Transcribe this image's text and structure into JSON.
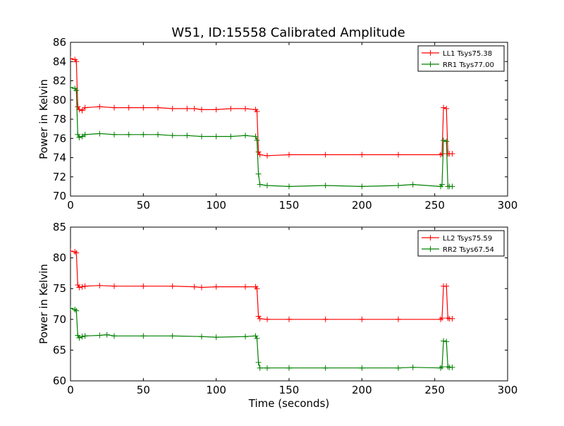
{
  "figure": {
    "title": "W51, ID:15558 Calibrated Amplitude"
  },
  "chart_data": [
    {
      "type": "line",
      "title": "W51, ID:15558 Calibrated Amplitude",
      "xlabel": "",
      "ylabel": "Power in Kelvin",
      "xlim": [
        0,
        300
      ],
      "ylim": [
        70,
        86
      ],
      "xticks": [
        0,
        50,
        100,
        150,
        200,
        250,
        300
      ],
      "yticks": [
        70,
        72,
        74,
        76,
        78,
        80,
        82,
        84,
        86
      ],
      "grid": false,
      "legend_position": "top-right",
      "series": [
        {
          "name": "LL1 Tsys75.38",
          "color": "#ff0000",
          "x": [
            0,
            3,
            4,
            5,
            6,
            8,
            10,
            20,
            30,
            40,
            50,
            60,
            70,
            80,
            85,
            90,
            100,
            110,
            120,
            127,
            128,
            129,
            130,
            135,
            150,
            175,
            200,
            225,
            254,
            255,
            256,
            258,
            259,
            260,
            262
          ],
          "values": [
            84.3,
            84.2,
            84.0,
            79.3,
            79.0,
            78.9,
            79.2,
            79.3,
            79.2,
            79.2,
            79.2,
            79.2,
            79.1,
            79.1,
            79.1,
            79.0,
            79.0,
            79.1,
            79.1,
            79.0,
            78.8,
            74.6,
            74.3,
            74.2,
            74.3,
            74.3,
            74.3,
            74.3,
            74.3,
            74.4,
            79.2,
            79.1,
            74.4,
            74.4,
            74.4
          ]
        },
        {
          "name": "RR1 Tsys77.00",
          "color": "#008000",
          "x": [
            0,
            3,
            4,
            5,
            6,
            8,
            10,
            20,
            30,
            40,
            50,
            60,
            70,
            80,
            90,
            100,
            110,
            120,
            127,
            128,
            129,
            130,
            135,
            150,
            175,
            200,
            225,
            235,
            254,
            255,
            256,
            258,
            259,
            260,
            262
          ],
          "values": [
            81.3,
            81.2,
            81.0,
            76.4,
            76.1,
            76.2,
            76.4,
            76.5,
            76.4,
            76.4,
            76.4,
            76.4,
            76.3,
            76.3,
            76.2,
            76.2,
            76.2,
            76.3,
            76.2,
            75.8,
            72.3,
            71.2,
            71.1,
            71.0,
            71.1,
            71.0,
            71.1,
            71.2,
            71.0,
            71.2,
            75.8,
            75.7,
            71.0,
            71.0,
            71.0
          ]
        }
      ]
    },
    {
      "type": "line",
      "title": "",
      "xlabel": "Time (seconds)",
      "ylabel": "Power in Kelvin",
      "xlim": [
        0,
        300
      ],
      "ylim": [
        60,
        85
      ],
      "xticks": [
        0,
        50,
        100,
        150,
        200,
        250,
        300
      ],
      "yticks": [
        60,
        65,
        70,
        75,
        80,
        85
      ],
      "grid": false,
      "legend_position": "top-right",
      "series": [
        {
          "name": "LL2 Tsys75.59",
          "color": "#ff0000",
          "x": [
            0,
            3,
            4,
            5,
            6,
            8,
            10,
            20,
            30,
            50,
            70,
            85,
            90,
            100,
            120,
            127,
            128,
            129,
            130,
            135,
            150,
            175,
            200,
            225,
            254,
            255,
            256,
            258,
            259,
            260,
            262
          ],
          "values": [
            81.1,
            81.0,
            80.8,
            75.6,
            75.2,
            75.3,
            75.4,
            75.5,
            75.4,
            75.4,
            75.4,
            75.3,
            75.2,
            75.3,
            75.3,
            75.3,
            75.0,
            70.5,
            70.1,
            70.0,
            70.0,
            70.0,
            70.0,
            70.0,
            70.0,
            70.2,
            75.4,
            75.4,
            70.2,
            70.1,
            70.1
          ]
        },
        {
          "name": "RR2 Tsys67.54",
          "color": "#008000",
          "x": [
            0,
            3,
            4,
            5,
            6,
            8,
            10,
            20,
            25,
            30,
            50,
            70,
            90,
            100,
            120,
            127,
            128,
            129,
            130,
            135,
            150,
            175,
            200,
            225,
            235,
            254,
            255,
            256,
            258,
            259,
            260,
            262
          ],
          "values": [
            71.8,
            71.6,
            71.4,
            67.4,
            67.0,
            67.2,
            67.3,
            67.4,
            67.5,
            67.3,
            67.3,
            67.3,
            67.2,
            67.1,
            67.2,
            67.3,
            66.9,
            63.0,
            62.1,
            62.1,
            62.1,
            62.1,
            62.1,
            62.1,
            62.2,
            62.1,
            62.3,
            66.5,
            66.4,
            62.3,
            62.2,
            62.2
          ]
        }
      ]
    }
  ]
}
